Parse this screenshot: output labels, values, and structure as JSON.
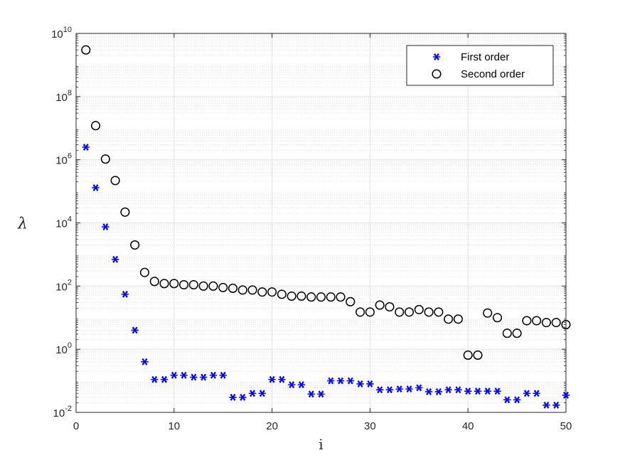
{
  "chart_data": {
    "type": "scatter",
    "xlabel": "i",
    "ylabel": "λ",
    "xlim": [
      0,
      50
    ],
    "ylim": [
      0.01,
      10000000000
    ],
    "yscale": "log",
    "grid": true,
    "minor_grid": true,
    "legend_position": "top-right",
    "x_ticks": [
      "0",
      "10",
      "20",
      "30",
      "40",
      "50"
    ],
    "y_ticks": [
      {
        "base": "10",
        "exp": "-2"
      },
      {
        "base": "10",
        "exp": "0"
      },
      {
        "base": "10",
        "exp": "2"
      },
      {
        "base": "10",
        "exp": "4"
      },
      {
        "base": "10",
        "exp": "6"
      },
      {
        "base": "10",
        "exp": "8"
      },
      {
        "base": "10",
        "exp": "10"
      }
    ],
    "colors": {
      "first_order": "#0000ff",
      "second_order": "#000000"
    },
    "series": [
      {
        "name": "First order",
        "marker": "asterisk",
        "x": [
          1,
          2,
          3,
          4,
          5,
          6,
          7,
          8,
          9,
          10,
          11,
          12,
          13,
          14,
          15,
          16,
          17,
          18,
          19,
          20,
          21,
          22,
          23,
          24,
          25,
          26,
          27,
          28,
          29,
          30,
          31,
          32,
          33,
          34,
          35,
          36,
          37,
          38,
          39,
          40,
          41,
          42,
          43,
          44,
          45,
          46,
          47,
          48,
          49,
          50
        ],
        "values": [
          2500000,
          130000,
          7500,
          700,
          55,
          4,
          0.4,
          0.11,
          0.11,
          0.15,
          0.15,
          0.13,
          0.13,
          0.15,
          0.15,
          0.03,
          0.03,
          0.04,
          0.04,
          0.11,
          0.11,
          0.075,
          0.075,
          0.038,
          0.038,
          0.1,
          0.1,
          0.1,
          0.08,
          0.08,
          0.052,
          0.052,
          0.055,
          0.055,
          0.06,
          0.045,
          0.045,
          0.052,
          0.052,
          0.047,
          0.047,
          0.047,
          0.047,
          0.025,
          0.025,
          0.04,
          0.04,
          0.017,
          0.017,
          0.035
        ]
      },
      {
        "name": "Second order",
        "marker": "circle",
        "x": [
          1,
          2,
          3,
          4,
          5,
          6,
          7,
          8,
          9,
          10,
          11,
          12,
          13,
          14,
          15,
          16,
          17,
          18,
          19,
          20,
          21,
          22,
          23,
          24,
          25,
          26,
          27,
          28,
          29,
          30,
          31,
          32,
          33,
          34,
          35,
          36,
          37,
          38,
          39,
          40,
          41,
          42,
          43,
          44,
          45,
          46,
          47,
          48,
          49,
          50
        ],
        "values": [
          3000000000,
          12000000,
          1050000,
          220000,
          22000,
          2000,
          270,
          140,
          120,
          120,
          110,
          110,
          100,
          100,
          90,
          85,
          75,
          75,
          65,
          65,
          55,
          48,
          48,
          45,
          45,
          45,
          45,
          32,
          15,
          15,
          25,
          22,
          15,
          15,
          18,
          15,
          15,
          9,
          9,
          0.65,
          0.65,
          14,
          10,
          3.2,
          3.2,
          8,
          8,
          7,
          7,
          6
        ]
      }
    ]
  }
}
